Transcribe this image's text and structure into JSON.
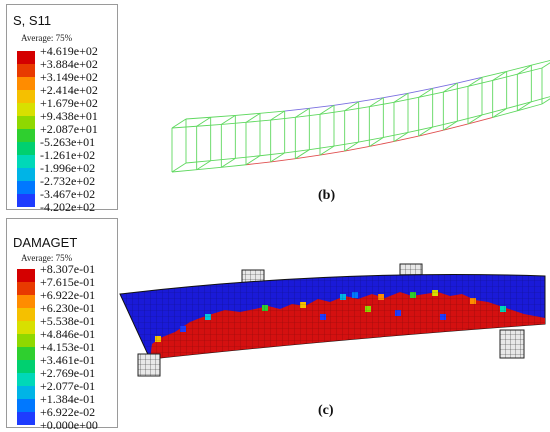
{
  "panel_b": {
    "legend": {
      "title": "S, S11",
      "subtitle": "Average: 75%",
      "values": [
        "+4.619e+02",
        "+3.884e+02",
        "+3.149e+02",
        "+2.414e+02",
        "+1.679e+02",
        "+9.438e+01",
        "+2.087e+01",
        "-5.263e+01",
        "-1.261e+02",
        "-1.996e+02",
        "-2.732e+02",
        "-3.467e+02",
        "-4.202e+02"
      ]
    },
    "caption": "(b)"
  },
  "panel_c": {
    "legend": {
      "title": "DAMAGET",
      "subtitle": "Average: 75%",
      "values": [
        "+8.307e-01",
        "+7.615e-01",
        "+6.922e-01",
        "+6.230e-01",
        "+5.538e-01",
        "+4.846e-01",
        "+4.153e-01",
        "+3.461e-01",
        "+2.769e-01",
        "+2.077e-01",
        "+1.384e-01",
        "+6.922e-02",
        "+0.000e+00"
      ]
    },
    "caption": "(c)"
  },
  "colors": {
    "contour": [
      "#d40000",
      "#e83a00",
      "#ff8c00",
      "#f5c000",
      "#d8e000",
      "#8fd800",
      "#2fcf2f",
      "#00d070",
      "#00d8b8",
      "#00b4e6",
      "#0078ff",
      "#1e3cff",
      "#1400d0"
    ]
  }
}
